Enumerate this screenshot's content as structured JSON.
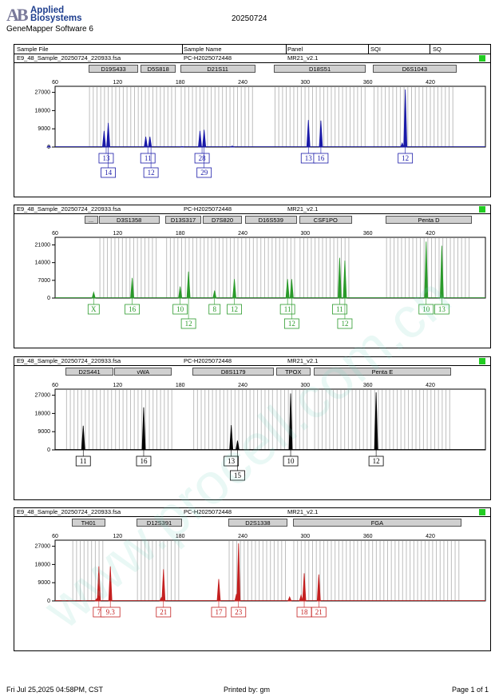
{
  "header": {
    "brand_line1": "Applied",
    "brand_line2": "Biosystems",
    "logo_letters": "AB",
    "app_name": "GeneMapper Software 6",
    "date_title": "20250724"
  },
  "columns": [
    "Sample File",
    "Sample Name",
    "Panel",
    "SQI",
    "SQ"
  ],
  "panels": [
    {
      "sample_file": "E9_48_Sample_20250724_220933.fsa",
      "sample_name": "PC-H2025072448",
      "panel": "MR21_v2.1",
      "quality_color": "#22cc22",
      "color": "#1a1aa8",
      "markers": [
        {
          "name": "D19S433",
          "start": 92,
          "end": 140
        },
        {
          "name": "D5S818",
          "start": 142,
          "end": 176
        },
        {
          "name": "D21S11",
          "start": 180,
          "end": 252
        },
        {
          "name": "D18S51",
          "start": 270,
          "end": 358
        },
        {
          "name": "D6S1043",
          "start": 365,
          "end": 445
        }
      ],
      "y_ticks": [
        "27000",
        "18000",
        "9000",
        "0"
      ],
      "y_max": 30000,
      "x_ticks": [
        "60",
        "120",
        "180",
        "240",
        "300",
        "360",
        "420"
      ],
      "peaks": [
        {
          "x": 107,
          "h": 0.28
        },
        {
          "x": 111,
          "h": 0.42
        },
        {
          "x": 147,
          "h": 0.18
        },
        {
          "x": 151,
          "h": 0.18
        },
        {
          "x": 199,
          "h": 0.28
        },
        {
          "x": 203,
          "h": 0.3
        },
        {
          "x": 303,
          "h": 0.47
        },
        {
          "x": 315,
          "h": 0.46
        },
        {
          "x": 393,
          "h": 0.07
        },
        {
          "x": 396,
          "h": 1.0
        },
        {
          "x": 54,
          "h": 0.02
        },
        {
          "x": 182,
          "h": 0.01
        },
        {
          "x": 230,
          "h": 0.02
        }
      ],
      "allele_row1": [
        {
          "label": "13",
          "x": 109
        },
        {
          "label": "11",
          "x": 149
        },
        {
          "label": "28",
          "x": 201
        },
        {
          "label": "13",
          "x": 303
        },
        {
          "label": "16",
          "x": 315
        },
        {
          "label": "12",
          "x": 396
        }
      ],
      "allele_row2": [
        {
          "label": "14",
          "x": 111
        },
        {
          "label": "12",
          "x": 152
        },
        {
          "label": "29",
          "x": 203
        }
      ]
    },
    {
      "sample_file": "E9_48_Sample_20250724_220933.fsa",
      "sample_name": "PC-H2025072448",
      "panel": "MR21_v2.1",
      "quality_color": "#22cc22",
      "color": "#2a9a2a",
      "markers": [
        {
          "name": "...",
          "start": 88,
          "end": 101
        },
        {
          "name": "D3S1358",
          "start": 102,
          "end": 160
        },
        {
          "name": "D13S317",
          "start": 166,
          "end": 200
        },
        {
          "name": "D7S820",
          "start": 202,
          "end": 239
        },
        {
          "name": "D16S539",
          "start": 242,
          "end": 292
        },
        {
          "name": "CSF1PO",
          "start": 294,
          "end": 345
        },
        {
          "name": "Penta D",
          "start": 377,
          "end": 460
        }
      ],
      "y_ticks": [
        "21000",
        "14000",
        "7000",
        "0"
      ],
      "y_max": 24000,
      "x_ticks": [
        "60",
        "120",
        "180",
        "240",
        "300",
        "360",
        "420"
      ],
      "peaks": [
        {
          "x": 97,
          "h": 0.1
        },
        {
          "x": 134,
          "h": 0.35
        },
        {
          "x": 180,
          "h": 0.2
        },
        {
          "x": 188,
          "h": 0.46
        },
        {
          "x": 213,
          "h": 0.13
        },
        {
          "x": 232,
          "h": 0.33
        },
        {
          "x": 283,
          "h": 0.33
        },
        {
          "x": 287,
          "h": 0.33
        },
        {
          "x": 333,
          "h": 0.7
        },
        {
          "x": 338,
          "h": 0.65
        },
        {
          "x": 416,
          "h": 0.98
        },
        {
          "x": 431,
          "h": 0.91
        }
      ],
      "allele_row1": [
        {
          "label": "X",
          "x": 97
        },
        {
          "label": "16",
          "x": 134
        },
        {
          "label": "10",
          "x": 180
        },
        {
          "label": "8",
          "x": 213
        },
        {
          "label": "12",
          "x": 232
        },
        {
          "label": "11",
          "x": 283
        },
        {
          "label": "11",
          "x": 333
        },
        {
          "label": "10",
          "x": 416
        },
        {
          "label": "13",
          "x": 431
        }
      ],
      "allele_row2": [
        {
          "label": "12",
          "x": 188
        },
        {
          "label": "12",
          "x": 287
        },
        {
          "label": "12",
          "x": 338
        }
      ]
    },
    {
      "sample_file": "E9_48_Sample_20250724_220933.fsa",
      "sample_name": "PC-H2025072448",
      "panel": "MR21_v2.1",
      "quality_color": "#22cc22",
      "color": "#000000",
      "markers": [
        {
          "name": "D2S441",
          "start": 70,
          "end": 116
        },
        {
          "name": "vWA",
          "start": 117,
          "end": 172
        },
        {
          "name": "D8S1179",
          "start": 192,
          "end": 270
        },
        {
          "name": "TPOX",
          "start": 272,
          "end": 305
        },
        {
          "name": "Penta E",
          "start": 308,
          "end": 440
        }
      ],
      "y_ticks": [
        "27000",
        "18000",
        "9000",
        "0"
      ],
      "y_max": 30000,
      "x_ticks": [
        "60",
        "120",
        "180",
        "240",
        "300",
        "360",
        "420"
      ],
      "peaks": [
        {
          "x": 87,
          "h": 0.42
        },
        {
          "x": 145,
          "h": 0.74
        },
        {
          "x": 229,
          "h": 0.43
        },
        {
          "x": 235,
          "h": 0.16
        },
        {
          "x": 286,
          "h": 0.98
        },
        {
          "x": 368,
          "h": 1.0
        }
      ],
      "allele_row1": [
        {
          "label": "11",
          "x": 87
        },
        {
          "label": "16",
          "x": 145
        },
        {
          "label": "13",
          "x": 229
        },
        {
          "label": "10",
          "x": 286
        },
        {
          "label": "12",
          "x": 368
        }
      ],
      "allele_row2": [
        {
          "label": "15",
          "x": 235
        }
      ]
    },
    {
      "sample_file": "E9_48_Sample_20250724_220933.fsa",
      "sample_name": "PC-H2025072448",
      "panel": "MR21_v2.1",
      "quality_color": "#22cc22",
      "color": "#c42020",
      "markers": [
        {
          "name": "TH01",
          "start": 76,
          "end": 108
        },
        {
          "name": "D12S391",
          "start": 138,
          "end": 182
        },
        {
          "name": "D2S1338",
          "start": 226,
          "end": 283
        },
        {
          "name": "FGA",
          "start": 288,
          "end": 450
        }
      ],
      "y_ticks": [
        "27000",
        "18000",
        "9000",
        "0"
      ],
      "y_max": 30000,
      "x_ticks": [
        "60",
        "120",
        "180",
        "240",
        "300",
        "360",
        "420"
      ],
      "peaks": [
        {
          "x": 102,
          "h": 0.6
        },
        {
          "x": 113,
          "h": 0.6
        },
        {
          "x": 164,
          "h": 0.55
        },
        {
          "x": 217,
          "h": 0.38
        },
        {
          "x": 234,
          "h": 0.12
        },
        {
          "x": 236,
          "h": 1.0
        },
        {
          "x": 285,
          "h": 0.07
        },
        {
          "x": 299,
          "h": 0.48
        },
        {
          "x": 313,
          "h": 0.46
        },
        {
          "x": 100,
          "h": 0.04
        },
        {
          "x": 162,
          "h": 0.06
        },
        {
          "x": 296,
          "h": 0.1
        }
      ],
      "allele_row1": [
        {
          "label": "7",
          "x": 102
        },
        {
          "label": "9.3",
          "x": 113
        },
        {
          "label": "21",
          "x": 164
        },
        {
          "label": "17",
          "x": 217
        },
        {
          "label": "23",
          "x": 236
        },
        {
          "label": "18",
          "x": 299
        },
        {
          "label": "21",
          "x": 313
        }
      ],
      "allele_row2": []
    }
  ],
  "footer": {
    "left": "Fri Jul 25,2025 04:58PM, CST",
    "center": "Printed by: gm",
    "right": "Page 1 of 1"
  },
  "watermark": "www.procell.com.cn"
}
